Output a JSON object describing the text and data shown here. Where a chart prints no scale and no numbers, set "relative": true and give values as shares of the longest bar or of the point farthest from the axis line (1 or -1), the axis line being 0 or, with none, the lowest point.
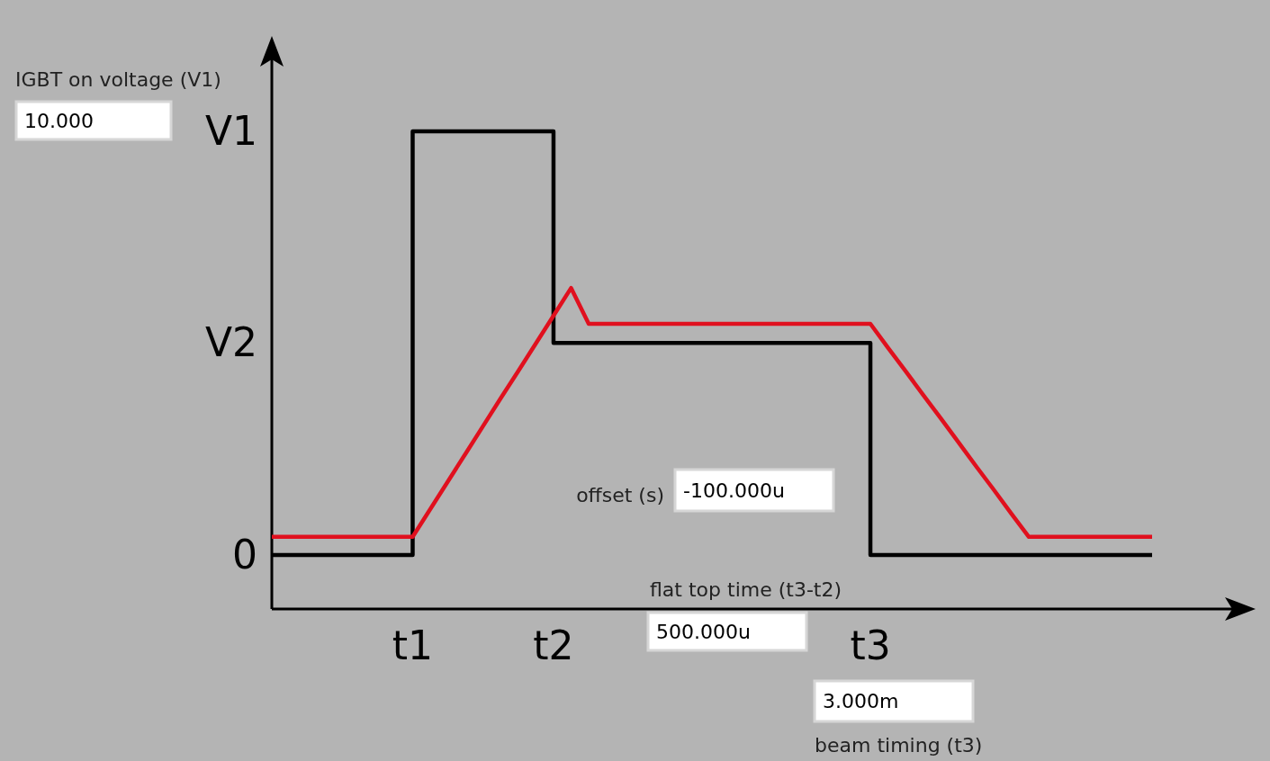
{
  "chart_data": {
    "type": "line",
    "relative": true,
    "line_style": "solid",
    "categories": [
      null,
      null,
      null,
      null,
      null,
      null,
      null,
      null,
      "t1",
      null,
      null,
      null,
      null,
      null,
      null,
      null,
      "t2",
      null,
      null,
      null,
      null,
      null,
      null,
      null,
      null,
      null,
      null,
      null,
      null,
      null,
      null,
      null,
      null,
      null,
      "t3",
      null,
      null,
      null,
      null,
      null,
      null,
      null,
      null,
      null,
      null,
      null,
      null,
      null,
      null,
      null,
      null
    ],
    "series": [
      {
        "type": "step",
        "color": "#000000",
        "values": [
          0.113,
          0.113,
          0.113,
          0.113,
          0.113,
          0.113,
          0.113,
          0.113,
          1,
          1,
          1,
          1,
          1,
          1,
          1,
          1,
          0.557,
          0.557,
          0.557,
          0.557,
          0.557,
          0.557,
          0.557,
          0.557,
          0.557,
          0.557,
          0.557,
          0.557,
          0.557,
          0.557,
          0.557,
          0.557,
          0.557,
          0.557,
          0.113,
          0.113,
          0.113,
          0.113,
          0.113,
          0.113,
          0.113,
          0.113,
          0.113,
          0.113,
          0.113,
          0.113,
          0.113,
          0.113,
          0.113,
          0.113,
          0.113
        ]
      },
      {
        "color": "#e0101e",
        "values": [
          0.151,
          0.151,
          0.151,
          0.151,
          0.151,
          0.151,
          0.151,
          0.151,
          0.151,
          0.209,
          0.267,
          0.325,
          0.383,
          0.441,
          0.498,
          0.556,
          0.614,
          0.672,
          0.597,
          0.597,
          0.597,
          0.597,
          0.597,
          0.597,
          0.597,
          0.597,
          0.597,
          0.597,
          0.597,
          0.597,
          0.597,
          0.597,
          0.597,
          0.597,
          0.597,
          0.547,
          0.498,
          0.448,
          0.399,
          0.349,
          0.299,
          0.25,
          0.2,
          0.151,
          0.151,
          0.151,
          0.151,
          0.151,
          0.151,
          0.151,
          0.151
        ]
      }
    ],
    "annotations": [
      "0",
      "V2",
      "V1",
      "IGBT on voltage (V1)",
      "10.000",
      "offset (s)",
      "-100.000u",
      "flat top time (t3-t2)",
      "500.000u",
      "3.000m",
      "beam timing (t3)"
    ]
  }
}
